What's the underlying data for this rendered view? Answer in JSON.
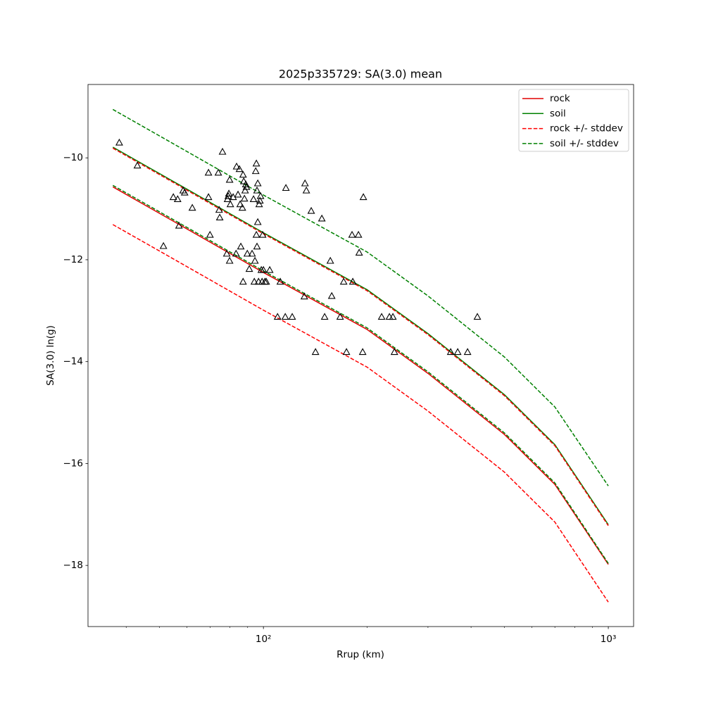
{
  "chart_data": {
    "type": "line",
    "title": "2025p335729: SA(3.0) mean",
    "xlabel": "Rrup (km)",
    "ylabel": "SA(3.0) ln(g)",
    "xscale": "log",
    "xlim": [
      31.0,
      1184
    ],
    "ylim": [
      -19.2,
      -8.56
    ],
    "xticks": [
      {
        "value": 100,
        "label": "10²"
      },
      {
        "value": 1000,
        "label": "10³"
      }
    ],
    "xminorticks": [
      40,
      50,
      60,
      70,
      80,
      90,
      200,
      300,
      400,
      500,
      600,
      700,
      800,
      900
    ],
    "yticks": [
      {
        "value": -18,
        "label": "−18"
      },
      {
        "value": -16,
        "label": "−16"
      },
      {
        "value": -14,
        "label": "−14"
      },
      {
        "value": -12,
        "label": "−12"
      },
      {
        "value": -10,
        "label": "−10"
      }
    ],
    "legend": "upper right",
    "x": [
      36.6,
      50,
      100,
      200,
      300,
      500,
      700,
      1000
    ],
    "series": [
      {
        "name": "rock",
        "color": "#e00000",
        "dashed": false,
        "values": [
          -10.57,
          -11.09,
          -12.25,
          -13.37,
          -14.23,
          -15.43,
          -16.41,
          -17.98
        ]
      },
      {
        "name": "soil",
        "color": "#008000",
        "dashed": false,
        "values": [
          -9.79,
          -10.31,
          -11.47,
          -12.59,
          -13.45,
          -14.65,
          -15.63,
          -17.2
        ]
      },
      {
        "name": "rock +/- stddev",
        "color": "#ff0000",
        "dashed": true,
        "upper": [
          -9.81,
          -10.33,
          -11.49,
          -12.61,
          -13.47,
          -14.67,
          -15.65,
          -17.22
        ],
        "lower": [
          -11.31,
          -11.83,
          -12.99,
          -14.11,
          -14.97,
          -16.17,
          -17.15,
          -18.72
        ]
      },
      {
        "name": "soil +/- stddev",
        "color": "#008000",
        "dashed": true,
        "upper": [
          -9.05,
          -9.57,
          -10.73,
          -11.85,
          -12.71,
          -13.91,
          -14.89,
          -16.44
        ],
        "lower": [
          -10.54,
          -11.06,
          -12.22,
          -13.34,
          -14.2,
          -15.4,
          -16.38,
          -17.96
        ]
      }
    ],
    "points": {
      "color": "#000000",
      "x": [
        38.2,
        43.1,
        51.3,
        54.8,
        56.4,
        56.9,
        58.5,
        59.1,
        62.2,
        69.3,
        69.3,
        70.0,
        74.0,
        74.4,
        74.7,
        76.1,
        78.3,
        78.7,
        79.1,
        79.4,
        79.8,
        79.8,
        80.2,
        81.7,
        83.3,
        83.6,
        84.4,
        85.2,
        85.6,
        86.0,
        86.9,
        87.3,
        87.3,
        87.7,
        88.1,
        88.5,
        88.9,
        89.3,
        89.8,
        91.0,
        92.7,
        93.6,
        94.1,
        94.5,
        95.0,
        95.4,
        95.4,
        95.8,
        95.8,
        96.3,
        96.3,
        96.8,
        97.2,
        97.7,
        98.1,
        98.6,
        99.1,
        99.5,
        100,
        101,
        101.9,
        104.3,
        109.9,
        111.9,
        115.7,
        116.2,
        121.2,
        131.4,
        132.0,
        133.2,
        137.6,
        147.7,
        150.5,
        156.3,
        157.8,
        166.9,
        170.9,
        174.1,
        180.7,
        181.6,
        188.6,
        189.5,
        194.0,
        194.9,
        220.2,
        231.9,
        237.4,
        239.8,
        349.1,
        365.9,
        390.8,
        417.2,
        141.6
      ],
      "y": [
        -9.7,
        -10.15,
        -11.73,
        -10.77,
        -10.81,
        -11.33,
        -10.64,
        -10.68,
        -10.98,
        -10.29,
        -10.77,
        -11.51,
        -10.29,
        -11.02,
        -11.17,
        -9.88,
        -11.88,
        -10.81,
        -10.75,
        -10.7,
        -12.02,
        -10.43,
        -10.91,
        -10.77,
        -11.88,
        -10.17,
        -10.72,
        -10.22,
        -10.91,
        -11.74,
        -10.98,
        -10.33,
        -12.43,
        -10.46,
        -10.8,
        -10.64,
        -10.52,
        -10.57,
        -11.88,
        -12.18,
        -11.88,
        -10.81,
        -12.43,
        -12.02,
        -10.26,
        -10.11,
        -11.51,
        -10.64,
        -11.74,
        -11.26,
        -10.5,
        -12.43,
        -10.91,
        -10.84,
        -10.75,
        -12.2,
        -12.43,
        -11.51,
        -12.2,
        -12.43,
        -12.43,
        -12.2,
        -13.12,
        -12.43,
        -13.12,
        -10.59,
        -13.12,
        -12.72,
        -10.5,
        -10.64,
        -11.04,
        -11.19,
        -13.12,
        -12.02,
        -12.71,
        -13.12,
        -12.43,
        -13.81,
        -11.51,
        -12.43,
        -11.51,
        -11.86,
        -13.81,
        -10.77,
        -13.12,
        -13.12,
        -13.12,
        -13.81,
        -13.81,
        -13.81,
        -13.81,
        -13.12,
        -13.81
      ]
    }
  }
}
